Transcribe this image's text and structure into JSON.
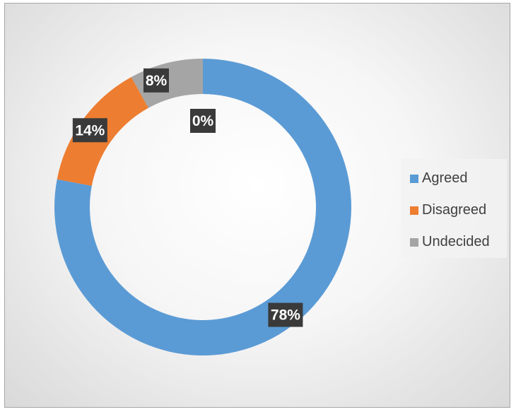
{
  "chart_data": {
    "type": "pie",
    "variant": "doughnut",
    "categories": [
      "Agreed",
      "Disagreed",
      "Undecided"
    ],
    "values": [
      78,
      14,
      8
    ],
    "colors": [
      "#5b9bd5",
      "#ed7d31",
      "#a5a5a5"
    ],
    "data_labels": [
      "78%",
      "14%",
      "8%"
    ],
    "extra_label": "0%",
    "legend_position": "right"
  }
}
